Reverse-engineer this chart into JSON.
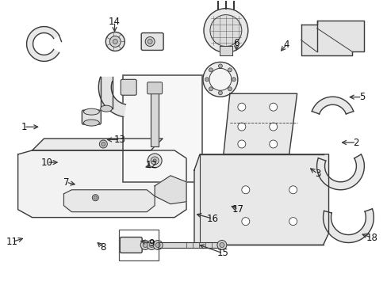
{
  "bg_color": "#ffffff",
  "line_color": "#3a3a3a",
  "fig_width": 4.89,
  "fig_height": 3.6,
  "dpi": 100,
  "label_positions": {
    "1": [
      0.06,
      0.445,
      0.105,
      0.445
    ],
    "2": [
      0.92,
      0.5,
      0.875,
      0.5
    ],
    "3": [
      0.82,
      0.61,
      0.795,
      0.585
    ],
    "4": [
      0.74,
      0.155,
      0.72,
      0.185
    ],
    "5": [
      0.935,
      0.34,
      0.895,
      0.34
    ],
    "6": [
      0.61,
      0.15,
      0.61,
      0.185
    ],
    "7": [
      0.17,
      0.64,
      0.2,
      0.65
    ],
    "8": [
      0.265,
      0.87,
      0.245,
      0.845
    ],
    "9": [
      0.39,
      0.855,
      0.355,
      0.845
    ],
    "10": [
      0.12,
      0.57,
      0.155,
      0.57
    ],
    "11": [
      0.03,
      0.85,
      0.065,
      0.835
    ],
    "12": [
      0.39,
      0.58,
      0.368,
      0.59
    ],
    "13": [
      0.308,
      0.49,
      0.268,
      0.49
    ],
    "14": [
      0.295,
      0.075,
      0.295,
      0.12
    ],
    "15": [
      0.575,
      0.89,
      0.508,
      0.858
    ],
    "16": [
      0.548,
      0.768,
      0.5,
      0.75
    ],
    "17": [
      0.615,
      0.735,
      0.59,
      0.72
    ],
    "18": [
      0.96,
      0.835,
      0.928,
      0.82
    ]
  }
}
